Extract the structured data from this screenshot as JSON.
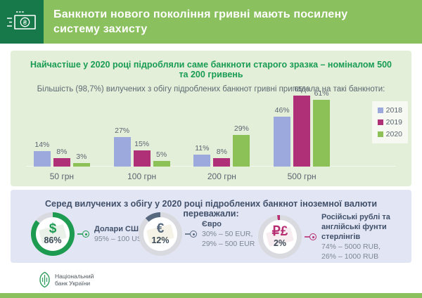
{
  "header": {
    "title": "Банкноти нового покоління гривні мають посилену систему захисту",
    "icon": "banknote-icon"
  },
  "colors": {
    "brand_dark_green": "#17784a",
    "brand_light_green": "#8bc05e",
    "panel_green_bg": "#e4efda",
    "panel_lavender_bg": "#e2e5f3",
    "accent_green_text": "#189c52",
    "accent_slate_text": "#40506a",
    "ring_gray": "#d9dadf"
  },
  "hryvnia_section": {
    "title": "Найчастіше у 2020 році підробляли саме банкноти старого зразка – номіналом 500 та 200 гривень",
    "subtitle": "Більшість (98,7%) вилучених з обігу підроблених банкнот гривні припадала на такі банкноти:"
  },
  "chart_data": [
    {
      "type": "bar",
      "categories": [
        "50 грн",
        "100 грн",
        "200 грн",
        "500 грн"
      ],
      "series": [
        {
          "name": "2018",
          "color": "#9ca9dc",
          "values": [
            14,
            27,
            11,
            46
          ]
        },
        {
          "name": "2019",
          "color": "#b03077",
          "values": [
            8,
            15,
            8,
            65
          ]
        },
        {
          "name": "2020",
          "color": "#8bc156",
          "values": [
            3,
            5,
            29,
            61
          ]
        }
      ],
      "value_suffix": "%",
      "title": "Більшість (98,7%) вилучених з обігу підроблених банкнот гривні припадала на такі банкноти:",
      "xlabel": "",
      "ylabel": "",
      "ylim": [
        0,
        70
      ],
      "grid": false,
      "legend_position": "right"
    },
    {
      "type": "pie",
      "title": "Серед вилучених з обігу у 2020 році підроблених банкнот іноземної валюти переважали:",
      "labels": [
        "Долари США",
        "Євро",
        "Російські рублі та англійські фунти стерлінгів"
      ],
      "values": [
        86,
        12,
        2
      ],
      "colors": [
        "#1d9b50",
        "#57687f",
        "#b62d72"
      ]
    }
  ],
  "foreign_section": {
    "title": "Серед вилучених з обігу у 2020 році підроблених банкнот іноземної валюти переважали:",
    "items": [
      {
        "symbol": "$",
        "share_label": "86%",
        "name": "Долари США",
        "details": [
          "95% – 100 USD"
        ],
        "watermark_tint": "#cfe0cf"
      },
      {
        "symbol": "€",
        "share_label": "12%",
        "name": "Євро",
        "details": [
          "30% – 50 EUR,",
          "29% – 500 EUR"
        ],
        "watermark_tint": "#e8e3c9"
      },
      {
        "symbol": "₽£",
        "share_label": "2%",
        "name": "Російські рублі та англійські фунти стерлінгів",
        "details": [
          "74% – 5000 RUB,",
          "26% – 1000 RUB"
        ],
        "watermark_tint": "#eed7e0"
      }
    ]
  },
  "footer": {
    "org_line1": "Національний",
    "org_line2": "банк України"
  }
}
